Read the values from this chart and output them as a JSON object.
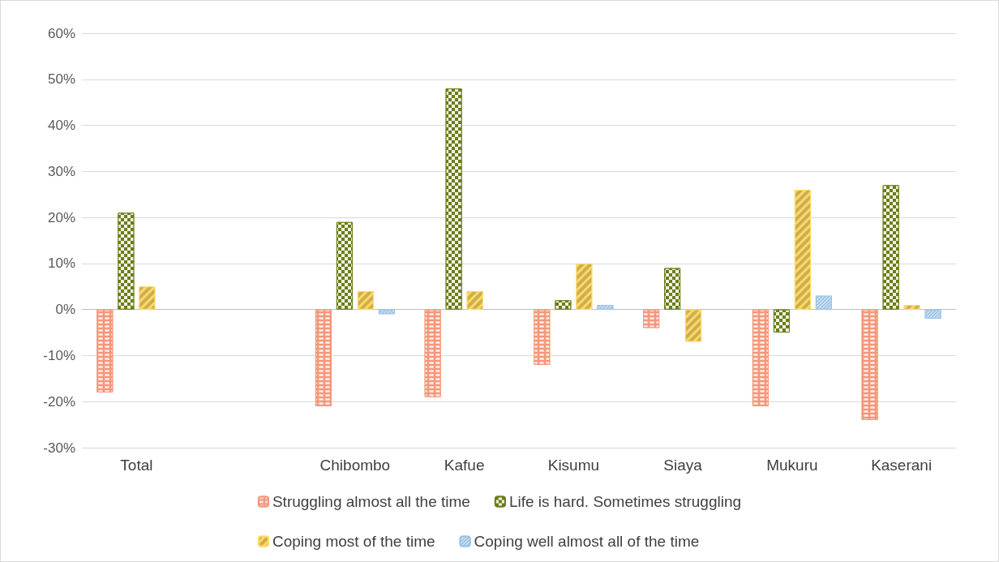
{
  "chart_data": {
    "type": "bar",
    "categories": [
      "Total",
      null,
      "Chibombo",
      "Kafue",
      "Kisumu",
      "Siaya",
      "Mukuru",
      "Kaserani"
    ],
    "series": [
      {
        "name": "Struggling almost all the time",
        "color": "#f4977a",
        "values": [
          -18,
          null,
          -21,
          -19,
          -12,
          -4,
          -21,
          -24
        ]
      },
      {
        "name": "Life is hard. Sometimes struggling",
        "color": "#6b7d17",
        "values": [
          21,
          null,
          19,
          48,
          2,
          9,
          -5,
          27
        ]
      },
      {
        "name": "Coping most of the time",
        "color": "#ffd966",
        "values": [
          5,
          null,
          4,
          4,
          10,
          -7,
          26,
          1
        ]
      },
      {
        "name": "Coping well almost all of the time",
        "color": "#9dc3e6",
        "values": [
          null,
          null,
          -1,
          null,
          1,
          null,
          3,
          -2
        ]
      }
    ],
    "ylim": [
      -30,
      60
    ],
    "yticks": [
      {
        "value": -30,
        "label": "-30%"
      },
      {
        "value": -20,
        "label": "-20%"
      },
      {
        "value": -10,
        "label": "-10%"
      },
      {
        "value": 0,
        "label": "0%"
      },
      {
        "value": 10,
        "label": "10%"
      },
      {
        "value": 20,
        "label": "20%"
      },
      {
        "value": 30,
        "label": "30%"
      },
      {
        "value": 40,
        "label": "40%"
      },
      {
        "value": 50,
        "label": "50%"
      },
      {
        "value": 60,
        "label": "60%"
      }
    ],
    "grid": "y",
    "legend": "bottom"
  }
}
